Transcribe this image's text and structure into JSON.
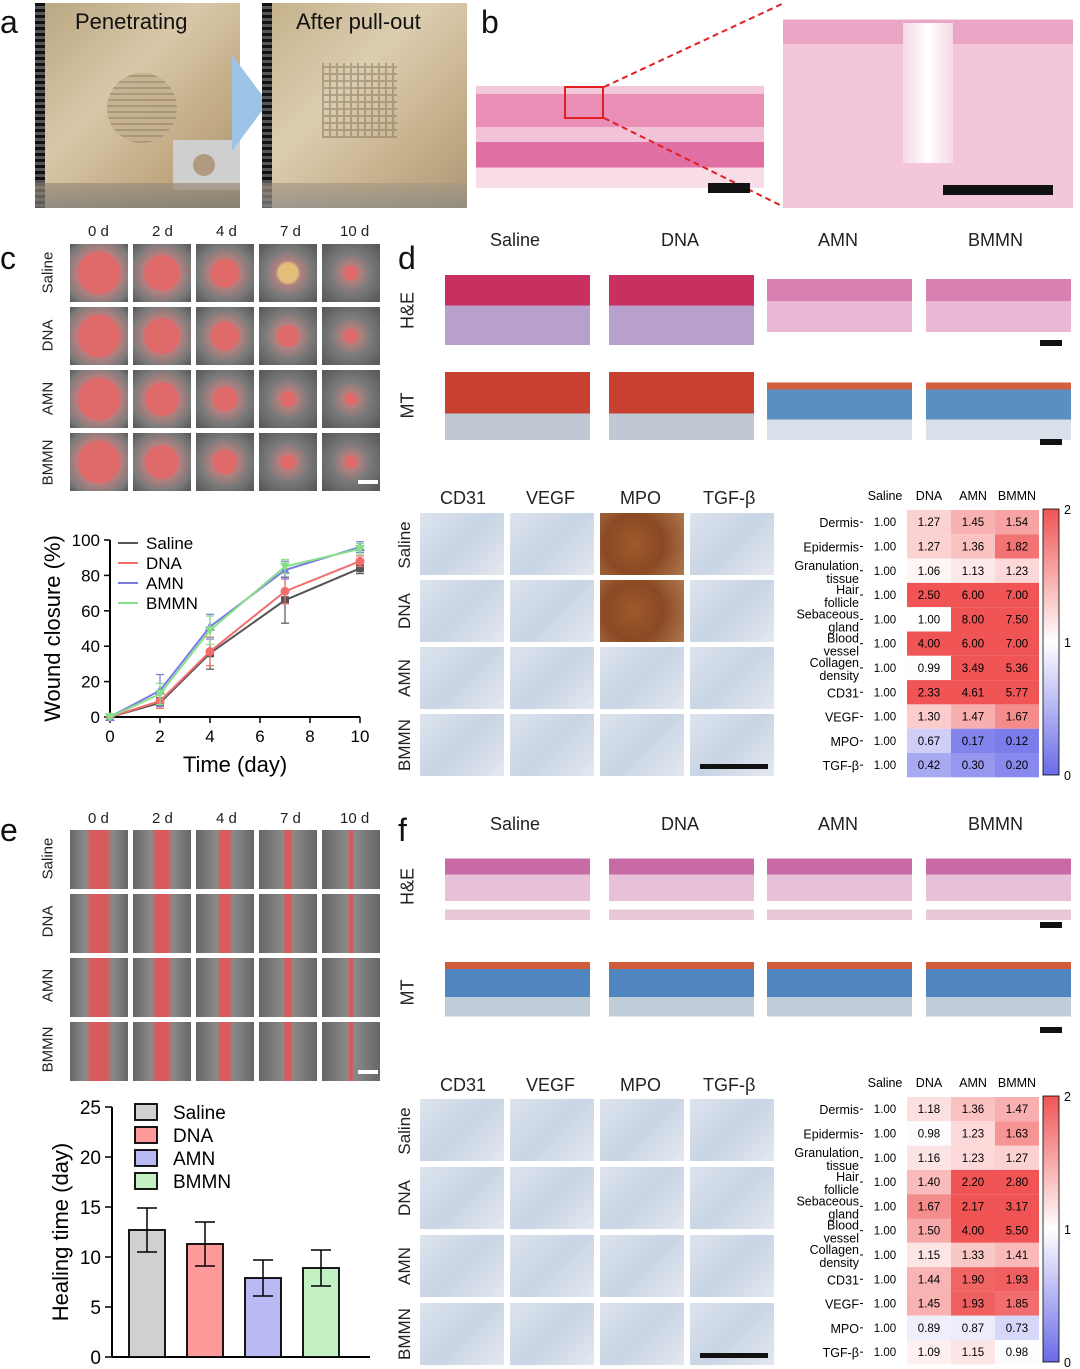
{
  "panel_labels": {
    "a": "a",
    "b": "b",
    "c": "c",
    "d": "d",
    "e": "e",
    "f": "f"
  },
  "panel_a": {
    "penetrating": "Penetrating",
    "after": "After pull-out"
  },
  "days": [
    "0 d",
    "2 d",
    "4 d",
    "7 d",
    "10 d"
  ],
  "groups": [
    "Saline",
    "DNA",
    "AMN",
    "BMMN"
  ],
  "stains": [
    "H&E",
    "MT"
  ],
  "ihc_markers": [
    "CD31",
    "VEGF",
    "MPO",
    "TGF-β"
  ],
  "colors": {
    "saline": "#555555",
    "dna": "#f26d6d",
    "amn": "#7b7be6",
    "bmmn": "#88e08a",
    "bar_saline": "#d0d0d0",
    "bar_dna": "#ff9a9a",
    "bar_amn": "#b9b9f3",
    "bar_bmmn": "#c4f1c4"
  },
  "chart_data": [
    {
      "type": "line",
      "xlabel": "Time (day)",
      "ylabel": "Wound closure (%)",
      "x": [
        0,
        2,
        4,
        7,
        10
      ],
      "xticks": [
        0,
        2,
        4,
        6,
        8,
        10
      ],
      "yticks": [
        0,
        20,
        40,
        60,
        80,
        100
      ],
      "xlim": [
        0,
        10
      ],
      "ylim": [
        0,
        100
      ],
      "series": [
        {
          "name": "Saline",
          "values": [
            0,
            8,
            36,
            66,
            84
          ],
          "err": [
            1,
            3,
            9,
            13,
            3
          ]
        },
        {
          "name": "DNA",
          "values": [
            0,
            9,
            37,
            71,
            88
          ],
          "err": [
            1,
            4,
            8,
            7,
            3
          ]
        },
        {
          "name": "AMN",
          "values": [
            0,
            15,
            51,
            83,
            96
          ],
          "err": [
            1,
            9,
            7,
            5,
            3
          ]
        },
        {
          "name": "BMMN",
          "values": [
            0,
            13,
            49,
            85,
            95
          ],
          "err": [
            1,
            6,
            8,
            4,
            3
          ]
        }
      ]
    },
    {
      "type": "bar",
      "ylabel": "Healing time (day)",
      "categories": [
        "Saline",
        "DNA",
        "AMN",
        "BMMN"
      ],
      "values": [
        12.7,
        11.3,
        7.9,
        8.9
      ],
      "err": [
        2.2,
        2.2,
        1.8,
        1.8
      ],
      "yticks": [
        0,
        5,
        10,
        15,
        20,
        25
      ],
      "ylim": [
        0,
        25
      ]
    },
    {
      "type": "heatmap",
      "columns": [
        "Saline",
        "DNA",
        "AMN",
        "BMMN"
      ],
      "rows": [
        "Dermis",
        "Epidermis",
        "Granulation tissue",
        "Hair follicle",
        "Sebaceous gland",
        "Blood vessel",
        "Collagen density",
        "CD31",
        "VEGF",
        "MPO",
        "TGF-β"
      ],
      "values": [
        [
          1.0,
          1.27,
          1.45,
          1.54
        ],
        [
          1.0,
          1.27,
          1.36,
          1.82
        ],
        [
          1.0,
          1.06,
          1.13,
          1.23
        ],
        [
          1.0,
          2.5,
          6.0,
          7.0
        ],
        [
          1.0,
          1.0,
          8.0,
          7.5
        ],
        [
          1.0,
          4.0,
          6.0,
          7.0
        ],
        [
          1.0,
          0.99,
          3.49,
          5.36
        ],
        [
          1.0,
          2.33,
          4.61,
          5.77
        ],
        [
          1.0,
          1.3,
          1.47,
          1.67
        ],
        [
          1.0,
          0.67,
          0.17,
          0.12
        ],
        [
          1.0,
          0.42,
          0.3,
          0.2
        ]
      ],
      "scale_ticks": [
        "2",
        "1",
        "0"
      ]
    },
    {
      "type": "heatmap",
      "columns": [
        "Saline",
        "DNA",
        "AMN",
        "BMMN"
      ],
      "rows": [
        "Dermis",
        "Epidermis",
        "Granulation tissue",
        "Hair follicle",
        "Sebaceous gland",
        "Blood vessel",
        "Collagen density",
        "CD31",
        "VEGF",
        "MPO",
        "TGF-β"
      ],
      "values": [
        [
          1.0,
          1.18,
          1.36,
          1.47
        ],
        [
          1.0,
          0.98,
          1.23,
          1.63
        ],
        [
          1.0,
          1.16,
          1.23,
          1.27
        ],
        [
          1.0,
          1.4,
          2.2,
          2.8
        ],
        [
          1.0,
          1.67,
          2.17,
          3.17
        ],
        [
          1.0,
          1.5,
          4.0,
          5.5
        ],
        [
          1.0,
          1.15,
          1.33,
          1.41
        ],
        [
          1.0,
          1.44,
          1.9,
          1.93
        ],
        [
          1.0,
          1.45,
          1.93,
          1.85
        ],
        [
          1.0,
          0.89,
          0.87,
          0.73
        ],
        [
          1.0,
          1.09,
          1.15,
          0.98
        ]
      ],
      "scale_ticks": [
        "2",
        "1",
        "0"
      ]
    }
  ]
}
